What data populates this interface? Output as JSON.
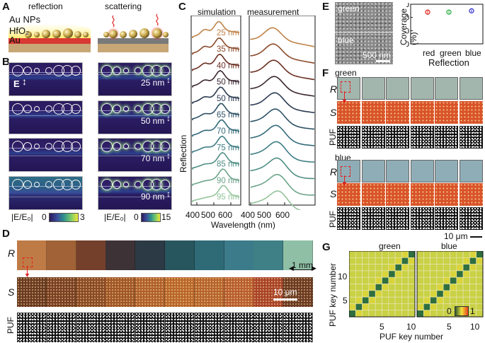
{
  "panels": {
    "A": "A",
    "B": "B",
    "C": "C",
    "D": "D",
    "E": "E",
    "F": "F",
    "G": "G"
  },
  "panelA": {
    "title_left": "reflection",
    "title_right": "scattering",
    "layer_np": "Au NPs",
    "layer_hfo2": "HfO₂",
    "layer_au": "Au"
  },
  "panelB": {
    "efield_label": "E",
    "gaps": [
      "25 nm",
      "50 nm",
      "70 nm",
      "90 nm"
    ],
    "colorbar_left": {
      "label": "|E/E₀|",
      "min": "0",
      "max": "3"
    },
    "colorbar_right": {
      "label": "|E/E₀|",
      "min": "0",
      "max": "15"
    }
  },
  "chart_data": [
    {
      "type": "line",
      "title_left": "simulation",
      "title_right": "measurement",
      "xlabel": "Wavelength (nm)",
      "ylabel": "Reflection",
      "xticks_left": [
        "400",
        "500",
        "600"
      ],
      "xticks_right": [
        "400",
        "500",
        "600"
      ],
      "xlim": [
        380,
        680
      ],
      "series_labels": [
        "25 nm",
        "35 nm",
        "40 nm",
        "50 nm",
        "50 nm",
        "65 nm",
        "70 nm",
        "75 nm",
        "85 nm",
        "90 nm",
        "95 nm"
      ],
      "series_colors": [
        "#c08248",
        "#8c4a2a",
        "#6b2f22",
        "#3a2630",
        "#2b3a52",
        "#2e5266",
        "#336a7a",
        "#3d7d84",
        "#4f8e84",
        "#6da48a",
        "#93c49a"
      ]
    },
    {
      "type": "scatter",
      "ylabel": "Coverage (%)",
      "xlabel": "Reflection",
      "categories": [
        "red",
        "green",
        "blue"
      ],
      "values": [
        24,
        24,
        25
      ],
      "yerr": [
        2,
        1,
        1
      ],
      "ylim": [
        0,
        30
      ],
      "yticks": [
        "0",
        "10",
        "20",
        "30"
      ],
      "colors": [
        "#e0302a",
        "#33b04a",
        "#3a3ad0"
      ]
    },
    {
      "type": "heatmap",
      "panels": [
        "green",
        "blue"
      ],
      "xlabel": "PUF key number",
      "ylabel": "PUF key number",
      "xticks": [
        "5",
        "10"
      ],
      "yticks": [
        "5",
        "10"
      ],
      "size": 10,
      "colorbar": {
        "min": "0",
        "max": "1"
      }
    }
  ],
  "panelD": {
    "row_R": "R",
    "row_S": "S",
    "row_PUF": "PUF",
    "scale_R": "1 mm",
    "scale_S": "10 μm"
  },
  "panelE": {
    "img_green": "green",
    "img_blue": "blue",
    "scale": "500 nm"
  },
  "panelF": {
    "group_green": "green",
    "group_blue": "blue",
    "row_R": "R",
    "row_S": "S",
    "row_PUF": "PUF",
    "scale": "10 μm"
  }
}
